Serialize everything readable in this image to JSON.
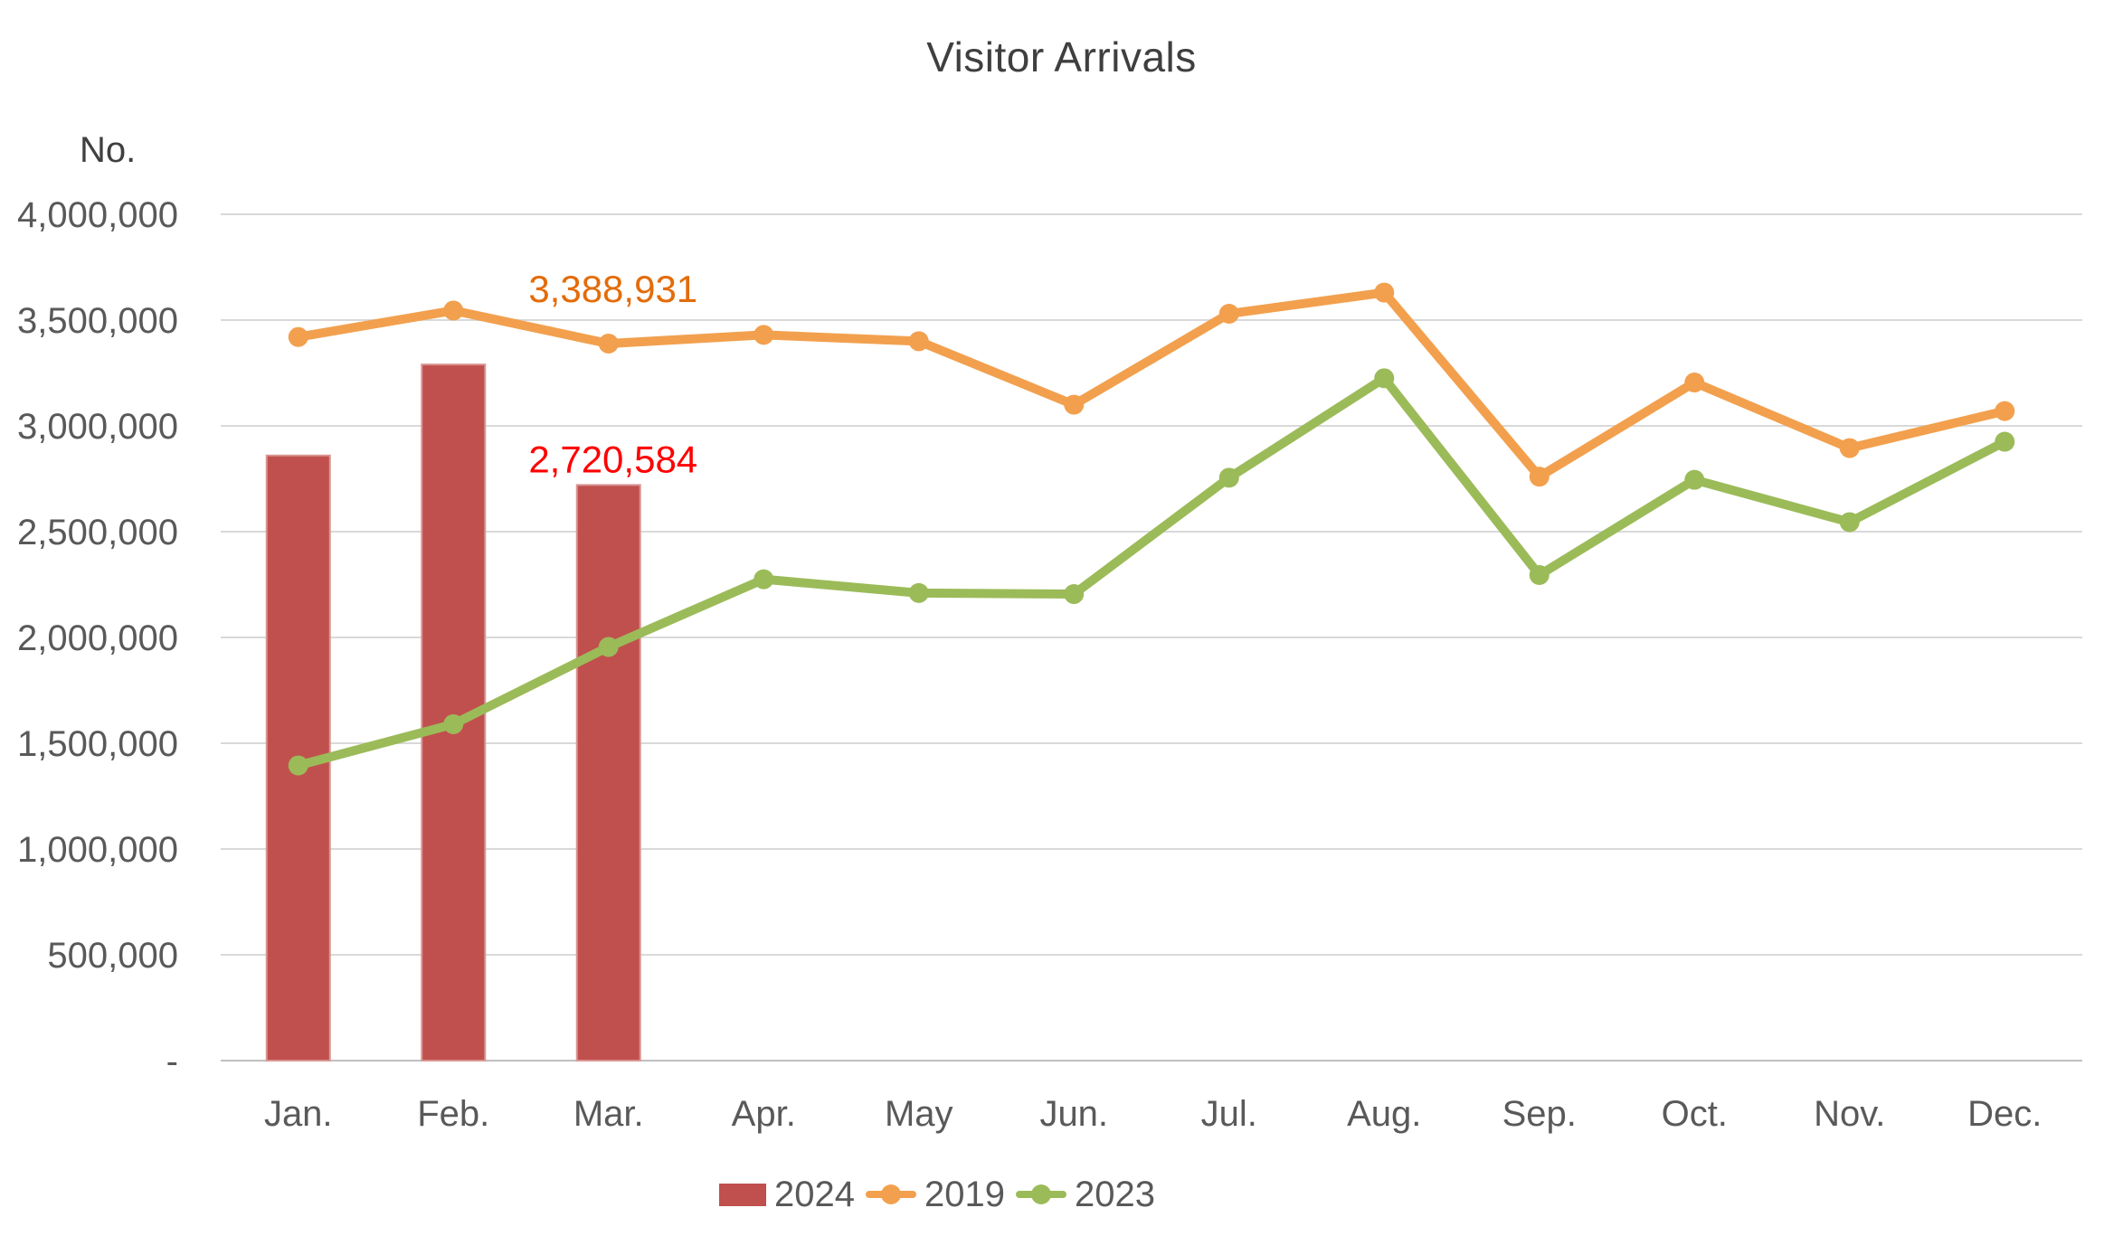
{
  "title": "Visitor Arrivals",
  "y_axis": {
    "unit_label": "No.",
    "ticks": [
      {
        "label": "4,000,000",
        "value": 4000000
      },
      {
        "label": "3,500,000",
        "value": 3500000
      },
      {
        "label": "3,000,000",
        "value": 3000000
      },
      {
        "label": "2,500,000",
        "value": 2500000
      },
      {
        "label": "2,000,000",
        "value": 2000000
      },
      {
        "label": "1,500,000",
        "value": 1500000
      },
      {
        "label": "1,000,000",
        "value": 1000000
      },
      {
        "label": "500,000",
        "value": 500000
      },
      {
        "label": "-",
        "value": 0
      }
    ]
  },
  "legend": [
    {
      "label": "2024",
      "marker": "bar",
      "color": "#C0504D"
    },
    {
      "label": "2019",
      "marker": "line-dot",
      "color": "#F2A04E"
    },
    {
      "label": "2023",
      "marker": "line-dot",
      "color": "#9BBB59"
    }
  ],
  "colors": {
    "bar_2024": "#C0504D",
    "bar_2024_border": "#D99694",
    "line_2019": "#F2A04E",
    "line_2023": "#9BBB59",
    "label_2019": "#E36C0A",
    "label_2024": "#FF0000",
    "gridline": "#D9D9D9",
    "axis_line": "#BFBFBF",
    "axis_text": "#595959",
    "title_text": "#3F3F3F"
  },
  "chart_data": {
    "type": "combo",
    "categories": [
      "Jan.",
      "Feb.",
      "Mar.",
      "Apr.",
      "May",
      "Jun.",
      "Jul.",
      "Aug.",
      "Sep.",
      "Oct.",
      "Nov.",
      "Dec."
    ],
    "series": [
      {
        "name": "2024",
        "type": "bar",
        "color": "#C0504D",
        "values": [
          2860000,
          3290000,
          2720584,
          null,
          null,
          null,
          null,
          null,
          null,
          null,
          null,
          null
        ]
      },
      {
        "name": "2019",
        "type": "line",
        "color": "#F2A04E",
        "values": [
          3420000,
          3545000,
          3388931,
          3430000,
          3400000,
          3100000,
          3530000,
          3630000,
          2760000,
          3205000,
          2895000,
          3070000
        ]
      },
      {
        "name": "2023",
        "type": "line",
        "color": "#9BBB59",
        "values": [
          1395000,
          1590000,
          1955000,
          2275000,
          2210000,
          2205000,
          2755000,
          3225000,
          2295000,
          2745000,
          2545000,
          2925000
        ]
      }
    ],
    "ylim": [
      0,
      4000000
    ],
    "grid": true,
    "legend_position": "bottom",
    "data_labels": [
      {
        "series": "2019",
        "category": "Mar.",
        "text": "3,388,931"
      },
      {
        "series": "2024",
        "category": "Mar.",
        "text": "2,720,584"
      }
    ]
  }
}
